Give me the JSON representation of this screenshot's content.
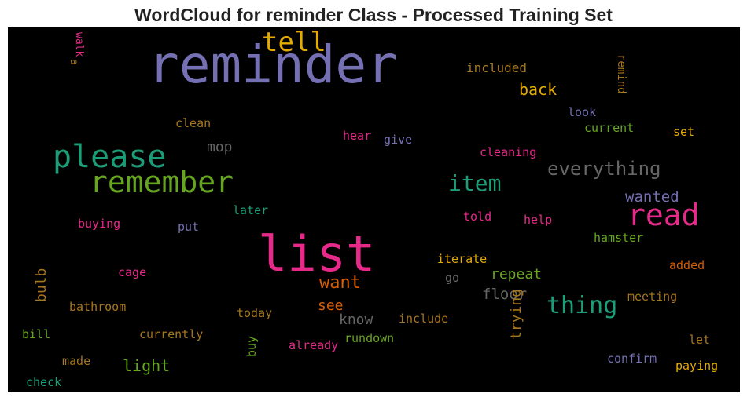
{
  "title": "WordCloud for reminder Class - Processed Training Set",
  "chart_data": {
    "type": "wordcloud",
    "background": "#000000",
    "words": [
      {
        "text": "reminder",
        "size": 66,
        "color": "#7570b3"
      },
      {
        "text": "list",
        "size": 62,
        "color": "#e7298a"
      },
      {
        "text": "remember",
        "size": 38,
        "color": "#66a61e"
      },
      {
        "text": "please",
        "size": 40,
        "color": "#1b9e77"
      },
      {
        "text": "read",
        "size": 38,
        "color": "#e7298a"
      },
      {
        "text": "tell",
        "size": 34,
        "color": "#e6ab02"
      },
      {
        "text": "thing",
        "size": 30,
        "color": "#1b9e77"
      },
      {
        "text": "item",
        "size": 28,
        "color": "#1b9e77"
      },
      {
        "text": "everything",
        "size": 24,
        "color": "#666666"
      },
      {
        "text": "want",
        "size": 22,
        "color": "#d95f02"
      },
      {
        "text": "light",
        "size": 20,
        "color": "#66a61e"
      },
      {
        "text": "back",
        "size": 20,
        "color": "#e6ab02"
      },
      {
        "text": "wanted",
        "size": 19,
        "color": "#7570b3"
      },
      {
        "text": "floor",
        "size": 19,
        "color": "#666666"
      },
      {
        "text": "repeat",
        "size": 18,
        "color": "#66a61e"
      },
      {
        "text": "see",
        "size": 18,
        "color": "#d95f02"
      },
      {
        "text": "know",
        "size": 18,
        "color": "#666666"
      },
      {
        "text": "mop",
        "size": 18,
        "color": "#666666"
      },
      {
        "text": "bulb",
        "size": 18,
        "color": "#a6761d"
      },
      {
        "text": "trying",
        "size": 18,
        "color": "#a6761d"
      },
      {
        "text": "included",
        "size": 16,
        "color": "#a6761d"
      },
      {
        "text": "remind",
        "size": 14,
        "color": "#a6761d"
      },
      {
        "text": "look",
        "size": 15,
        "color": "#7570b3"
      },
      {
        "text": "current",
        "size": 15,
        "color": "#66a61e"
      },
      {
        "text": "set",
        "size": 15,
        "color": "#e6ab02"
      },
      {
        "text": "clean",
        "size": 15,
        "color": "#a6761d"
      },
      {
        "text": "hear",
        "size": 15,
        "color": "#e7298a"
      },
      {
        "text": "give",
        "size": 15,
        "color": "#7570b3"
      },
      {
        "text": "cleaning",
        "size": 15,
        "color": "#e7298a"
      },
      {
        "text": "later",
        "size": 15,
        "color": "#1b9e77"
      },
      {
        "text": "buying",
        "size": 15,
        "color": "#e7298a"
      },
      {
        "text": "put",
        "size": 15,
        "color": "#7570b3"
      },
      {
        "text": "told",
        "size": 15,
        "color": "#e7298a"
      },
      {
        "text": "help",
        "size": 15,
        "color": "#e7298a"
      },
      {
        "text": "hamster",
        "size": 15,
        "color": "#66a61e"
      },
      {
        "text": "iterate",
        "size": 15,
        "color": "#e6ab02"
      },
      {
        "text": "added",
        "size": 15,
        "color": "#d95f02"
      },
      {
        "text": "cage",
        "size": 15,
        "color": "#e7298a"
      },
      {
        "text": "go",
        "size": 15,
        "color": "#666666"
      },
      {
        "text": "meeting",
        "size": 15,
        "color": "#a6761d"
      },
      {
        "text": "bathroom",
        "size": 15,
        "color": "#a6761d"
      },
      {
        "text": "today",
        "size": 15,
        "color": "#a6761d"
      },
      {
        "text": "include",
        "size": 15,
        "color": "#a6761d"
      },
      {
        "text": "bill",
        "size": 15,
        "color": "#66a61e"
      },
      {
        "text": "currently",
        "size": 15,
        "color": "#a6761d"
      },
      {
        "text": "rundown",
        "size": 15,
        "color": "#66a61e"
      },
      {
        "text": "already",
        "size": 15,
        "color": "#e7298a"
      },
      {
        "text": "let",
        "size": 15,
        "color": "#a6761d"
      },
      {
        "text": "buy",
        "size": 15,
        "color": "#66a61e"
      },
      {
        "text": "made",
        "size": 15,
        "color": "#a6761d"
      },
      {
        "text": "confirm",
        "size": 15,
        "color": "#7570b3"
      },
      {
        "text": "paying",
        "size": 15,
        "color": "#e6ab02"
      },
      {
        "text": "check",
        "size": 15,
        "color": "#1b9e77"
      },
      {
        "text": "walk",
        "size": 13,
        "color": "#e7298a"
      },
      {
        "text": "a",
        "size": 13,
        "color": "#a6761d"
      }
    ]
  }
}
